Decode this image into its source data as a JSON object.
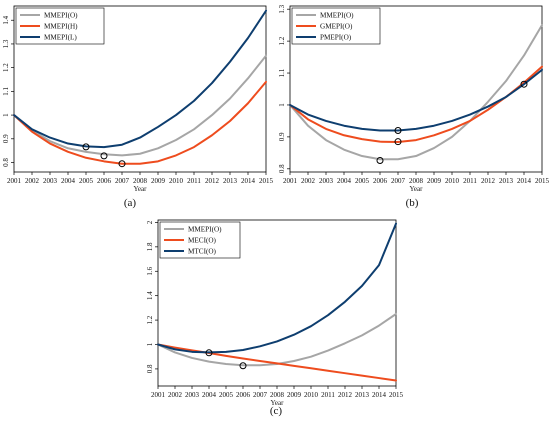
{
  "chart_data": [
    {
      "id": "a",
      "type": "line",
      "panel_label": "(a)",
      "xlabel": "Year",
      "ylabel": "",
      "x": [
        2001,
        2002,
        2003,
        2004,
        2005,
        2006,
        2007,
        2008,
        2009,
        2010,
        2011,
        2012,
        2013,
        2014,
        2015
      ],
      "xlim": [
        2001,
        2015
      ],
      "ylim": [
        0.76,
        1.46
      ],
      "yticks": [
        0.8,
        0.9,
        1,
        1.1,
        1.2,
        1.3,
        1.4
      ],
      "ytick_labels": [
        "0.8",
        "0.9",
        "1",
        "1.1",
        "1.2",
        "1.3",
        "1.4"
      ],
      "legend_position": "top-left",
      "grid": false,
      "series": [
        {
          "name": "MMEPI(O)",
          "color": "#a6a6a6",
          "values": [
            1.0,
            0.935,
            0.89,
            0.86,
            0.845,
            0.835,
            0.83,
            0.837,
            0.86,
            0.895,
            0.94,
            1.0,
            1.07,
            1.155,
            1.25
          ],
          "marker": {
            "x": 2006,
            "y": 0.828
          }
        },
        {
          "name": "MMEPI(H)",
          "color": "#ee4c1e",
          "values": [
            1.0,
            0.93,
            0.88,
            0.845,
            0.82,
            0.805,
            0.795,
            0.795,
            0.805,
            0.83,
            0.865,
            0.915,
            0.975,
            1.05,
            1.14
          ],
          "marker": {
            "x": 2007,
            "y": 0.795
          }
        },
        {
          "name": "MMEPI(L)",
          "color": "#0e3e6f",
          "values": [
            1.0,
            0.94,
            0.905,
            0.88,
            0.868,
            0.865,
            0.875,
            0.905,
            0.95,
            1.0,
            1.06,
            1.135,
            1.225,
            1.325,
            1.44
          ],
          "marker": {
            "x": 2005,
            "y": 0.866
          }
        }
      ]
    },
    {
      "id": "b",
      "type": "line",
      "panel_label": "(b)",
      "xlabel": "Year",
      "ylabel": "",
      "x": [
        2001,
        2002,
        2003,
        2004,
        2005,
        2006,
        2007,
        2008,
        2009,
        2010,
        2011,
        2012,
        2013,
        2014,
        2015
      ],
      "xlim": [
        2001,
        2015
      ],
      "ylim": [
        0.79,
        1.31
      ],
      "yticks": [
        0.8,
        0.9,
        1,
        1.1,
        1.2,
        1.3
      ],
      "ytick_labels": [
        "0.8",
        "0.9",
        "1",
        "1.1",
        "1.2",
        "1.3"
      ],
      "legend_position": "top-left",
      "grid": false,
      "series": [
        {
          "name": "MMEPI(O)",
          "color": "#a6a6a6",
          "values": [
            1.0,
            0.935,
            0.89,
            0.86,
            0.84,
            0.83,
            0.83,
            0.84,
            0.865,
            0.9,
            0.95,
            1.01,
            1.075,
            1.155,
            1.25
          ],
          "marker": {
            "x": 2006,
            "y": 0.826
          }
        },
        {
          "name": "GMEPI(O)",
          "color": "#ee4c1e",
          "values": [
            1.0,
            0.955,
            0.925,
            0.905,
            0.893,
            0.885,
            0.884,
            0.89,
            0.905,
            0.925,
            0.95,
            0.985,
            1.025,
            1.07,
            1.12
          ],
          "marker": {
            "x": 2007,
            "y": 0.885
          }
        },
        {
          "name": "PMEPI(O)",
          "color": "#0e3e6f",
          "values": [
            1.0,
            0.97,
            0.95,
            0.935,
            0.925,
            0.92,
            0.92,
            0.925,
            0.935,
            0.95,
            0.97,
            0.995,
            1.025,
            1.065,
            1.11
          ],
          "marker": {
            "x": 2007,
            "y": 0.92
          },
          "marker2": {
            "x": 2014,
            "y": 1.065
          }
        }
      ]
    },
    {
      "id": "c",
      "type": "line",
      "panel_label": "(c)",
      "xlabel": "Year",
      "ylabel": "",
      "x": [
        2001,
        2002,
        2003,
        2004,
        2005,
        2006,
        2007,
        2008,
        2009,
        2010,
        2011,
        2012,
        2013,
        2014,
        2015
      ],
      "xlim": [
        2001,
        2015
      ],
      "ylim": [
        0.66,
        2.02
      ],
      "yticks": [
        0.8,
        1,
        1.2,
        1.4,
        1.6,
        1.8,
        2
      ],
      "ytick_labels": [
        "0.8",
        "1",
        "1.2",
        "1.4",
        "1.6",
        "1.8",
        "2"
      ],
      "legend_position": "top-left",
      "grid": false,
      "series": [
        {
          "name": "MMEPI(O)",
          "color": "#a6a6a6",
          "values": [
            1.0,
            0.935,
            0.89,
            0.86,
            0.84,
            0.83,
            0.83,
            0.84,
            0.865,
            0.9,
            0.95,
            1.01,
            1.075,
            1.155,
            1.25
          ],
          "marker": {
            "x": 2006,
            "y": 0.826
          }
        },
        {
          "name": "MECI(O)",
          "color": "#ee4c1e",
          "values": [
            1.0,
            0.975,
            0.952,
            0.93,
            0.907,
            0.885,
            0.865,
            0.845,
            0.825,
            0.805,
            0.785,
            0.765,
            0.745,
            0.725,
            0.705
          ]
        },
        {
          "name": "MTCI(O)",
          "color": "#0e3e6f",
          "values": [
            1.0,
            0.96,
            0.94,
            0.935,
            0.94,
            0.955,
            0.985,
            1.025,
            1.08,
            1.15,
            1.24,
            1.35,
            1.48,
            1.65,
            1.99
          ],
          "marker": {
            "x": 2004,
            "y": 0.932
          }
        }
      ]
    }
  ]
}
